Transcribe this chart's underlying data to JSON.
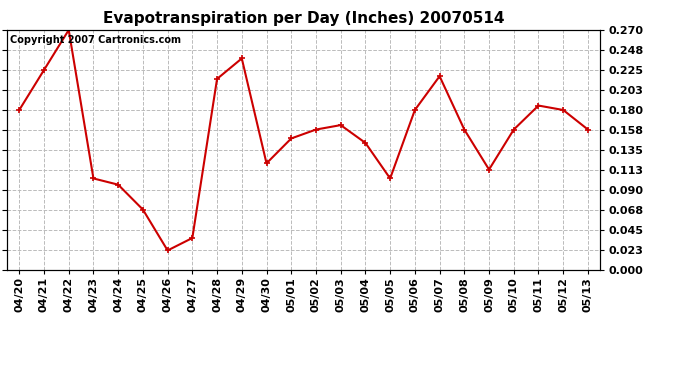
{
  "title": "Evapotranspiration per Day (Inches) 20070514",
  "copyright_text": "Copyright 2007 Cartronics.com",
  "x_labels": [
    "04/20",
    "04/21",
    "04/22",
    "04/23",
    "04/24",
    "04/25",
    "04/26",
    "04/27",
    "04/28",
    "04/29",
    "04/30",
    "05/01",
    "05/02",
    "05/03",
    "05/04",
    "05/05",
    "05/06",
    "05/07",
    "05/08",
    "05/09",
    "05/10",
    "05/11",
    "05/12",
    "05/13"
  ],
  "y_values": [
    0.18,
    0.225,
    0.27,
    0.103,
    0.096,
    0.068,
    0.022,
    0.036,
    0.215,
    0.238,
    0.12,
    0.148,
    0.158,
    0.163,
    0.143,
    0.103,
    0.18,
    0.218,
    0.158,
    0.113,
    0.158,
    0.185,
    0.18,
    0.158
  ],
  "line_color": "#cc0000",
  "marker": "+",
  "marker_size": 5,
  "bg_color": "#ffffff",
  "grid_color": "#bbbbbb",
  "y_ticks": [
    0.0,
    0.023,
    0.045,
    0.068,
    0.09,
    0.113,
    0.135,
    0.158,
    0.18,
    0.203,
    0.225,
    0.248,
    0.27
  ],
  "ylim": [
    0.0,
    0.27
  ],
  "title_fontsize": 11,
  "tick_fontsize": 8,
  "copyright_fontsize": 7
}
